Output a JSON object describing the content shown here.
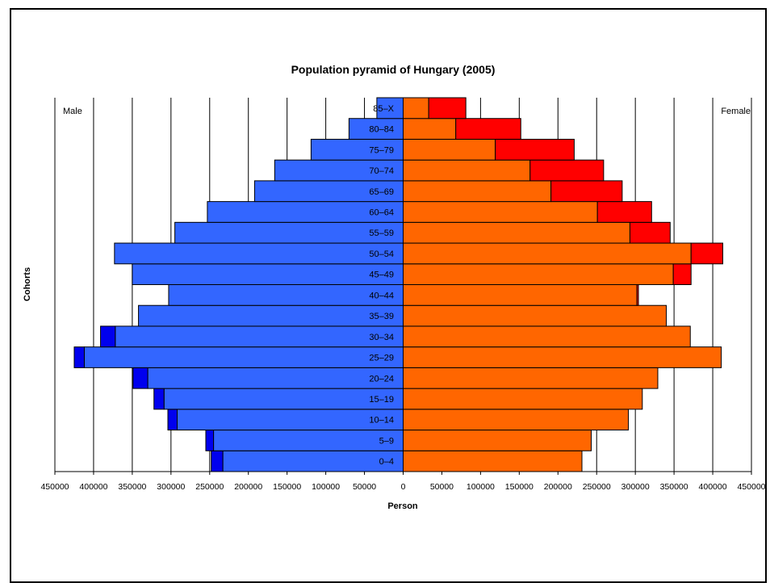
{
  "chart_data": {
    "type": "bar",
    "orientation": "horizontal",
    "layout": "population-pyramid",
    "title": "Population pyramid of Hungary (2005)",
    "xlabel": "Person",
    "ylabel": "Cohorts",
    "left_side_label": "Male",
    "right_side_label": "Female",
    "xlim": [
      -450000,
      450000
    ],
    "x_tick_values": [
      -450000,
      -400000,
      -350000,
      -300000,
      -250000,
      -200000,
      -150000,
      -100000,
      -50000,
      0,
      50000,
      100000,
      150000,
      200000,
      250000,
      300000,
      350000,
      400000,
      450000
    ],
    "x_tick_labels": [
      "450000",
      "400000",
      "350000",
      "300000",
      "250000",
      "200000",
      "150000",
      "100000",
      "50000",
      "0",
      "50000",
      "100000",
      "150000",
      "200000",
      "250000",
      "300000",
      "350000",
      "400000",
      "450000"
    ],
    "grid": "vertical",
    "categories": [
      "0–4",
      "5–9",
      "10–14",
      "15–19",
      "20–24",
      "25–29",
      "30–34",
      "35–39",
      "40–44",
      "45–49",
      "50–54",
      "55–59",
      "60–64",
      "65–69",
      "70–74",
      "75–79",
      "80–84",
      "85–X"
    ],
    "male_base": [
      233000,
      245000,
      292000,
      309000,
      330000,
      412000,
      372000,
      342000,
      303000,
      350000,
      373000,
      295000,
      253000,
      192000,
      166000,
      119000,
      70000,
      34000
    ],
    "male_surplus": [
      15000,
      10000,
      12000,
      13000,
      19000,
      13000,
      19000,
      0,
      0,
      0,
      0,
      0,
      0,
      0,
      0,
      0,
      0,
      0
    ],
    "female_base": [
      231000,
      243000,
      291000,
      309000,
      329000,
      411000,
      371000,
      340000,
      302000,
      349000,
      372000,
      293000,
      251000,
      191000,
      164000,
      119000,
      68000,
      33000
    ],
    "female_surplus": [
      0,
      0,
      0,
      0,
      0,
      0,
      0,
      0,
      2000,
      23000,
      41000,
      52000,
      70000,
      92000,
      95000,
      102000,
      84000,
      48000
    ],
    "colors": {
      "male_base": "#3366ff",
      "male_surplus": "#0000ee",
      "female_base": "#ff6600",
      "female_surplus": "#ff0000",
      "grid": "#000000",
      "bar_outline": "#000000"
    }
  }
}
